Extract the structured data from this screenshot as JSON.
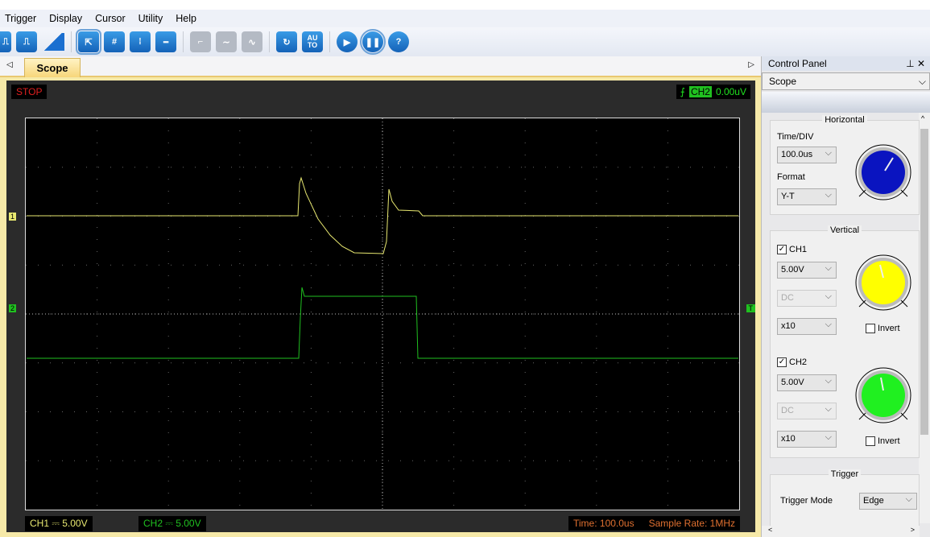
{
  "menu": [
    "Trigger",
    "Display",
    "Cursor",
    "Utility",
    "Help"
  ],
  "tab": {
    "label": "Scope"
  },
  "scope": {
    "status": "STOP",
    "trigger_channel": "CH2",
    "trigger_level": "0.00uV",
    "ch1_marker": "1",
    "ch2_marker": "2",
    "trigger_marker": "T",
    "ch1_scale": "CH1 ⎓  5.00V",
    "ch2_scale": "CH2 ⎓  5.00V",
    "time": "Time: 100.0us",
    "sample_rate": "Sample Rate: 1MHz"
  },
  "colors": {
    "ch1": "#e8e870",
    "ch2": "#20c020",
    "horizontal_knob": "#0a14c0",
    "ch1_knob": "#ffff00",
    "ch2_knob": "#20f020"
  },
  "control_panel": {
    "title": "Control Panel",
    "mode": "Scope",
    "horizontal": {
      "title": "Horizontal",
      "time_div_label": "Time/DIV",
      "time_div": "100.0us",
      "format_label": "Format",
      "format": "Y-T"
    },
    "vertical": {
      "title": "Vertical",
      "ch1": {
        "label": "CH1",
        "checked": true,
        "volts": "5.00V",
        "coupling": "DC",
        "probe": "x10",
        "invert_label": "Invert"
      },
      "ch2": {
        "label": "CH2",
        "checked": true,
        "volts": "5.00V",
        "coupling": "DC",
        "probe": "x10",
        "invert_label": "Invert"
      }
    },
    "trigger": {
      "title": "Trigger",
      "mode_label": "Trigger Mode",
      "mode": "Edge"
    }
  }
}
